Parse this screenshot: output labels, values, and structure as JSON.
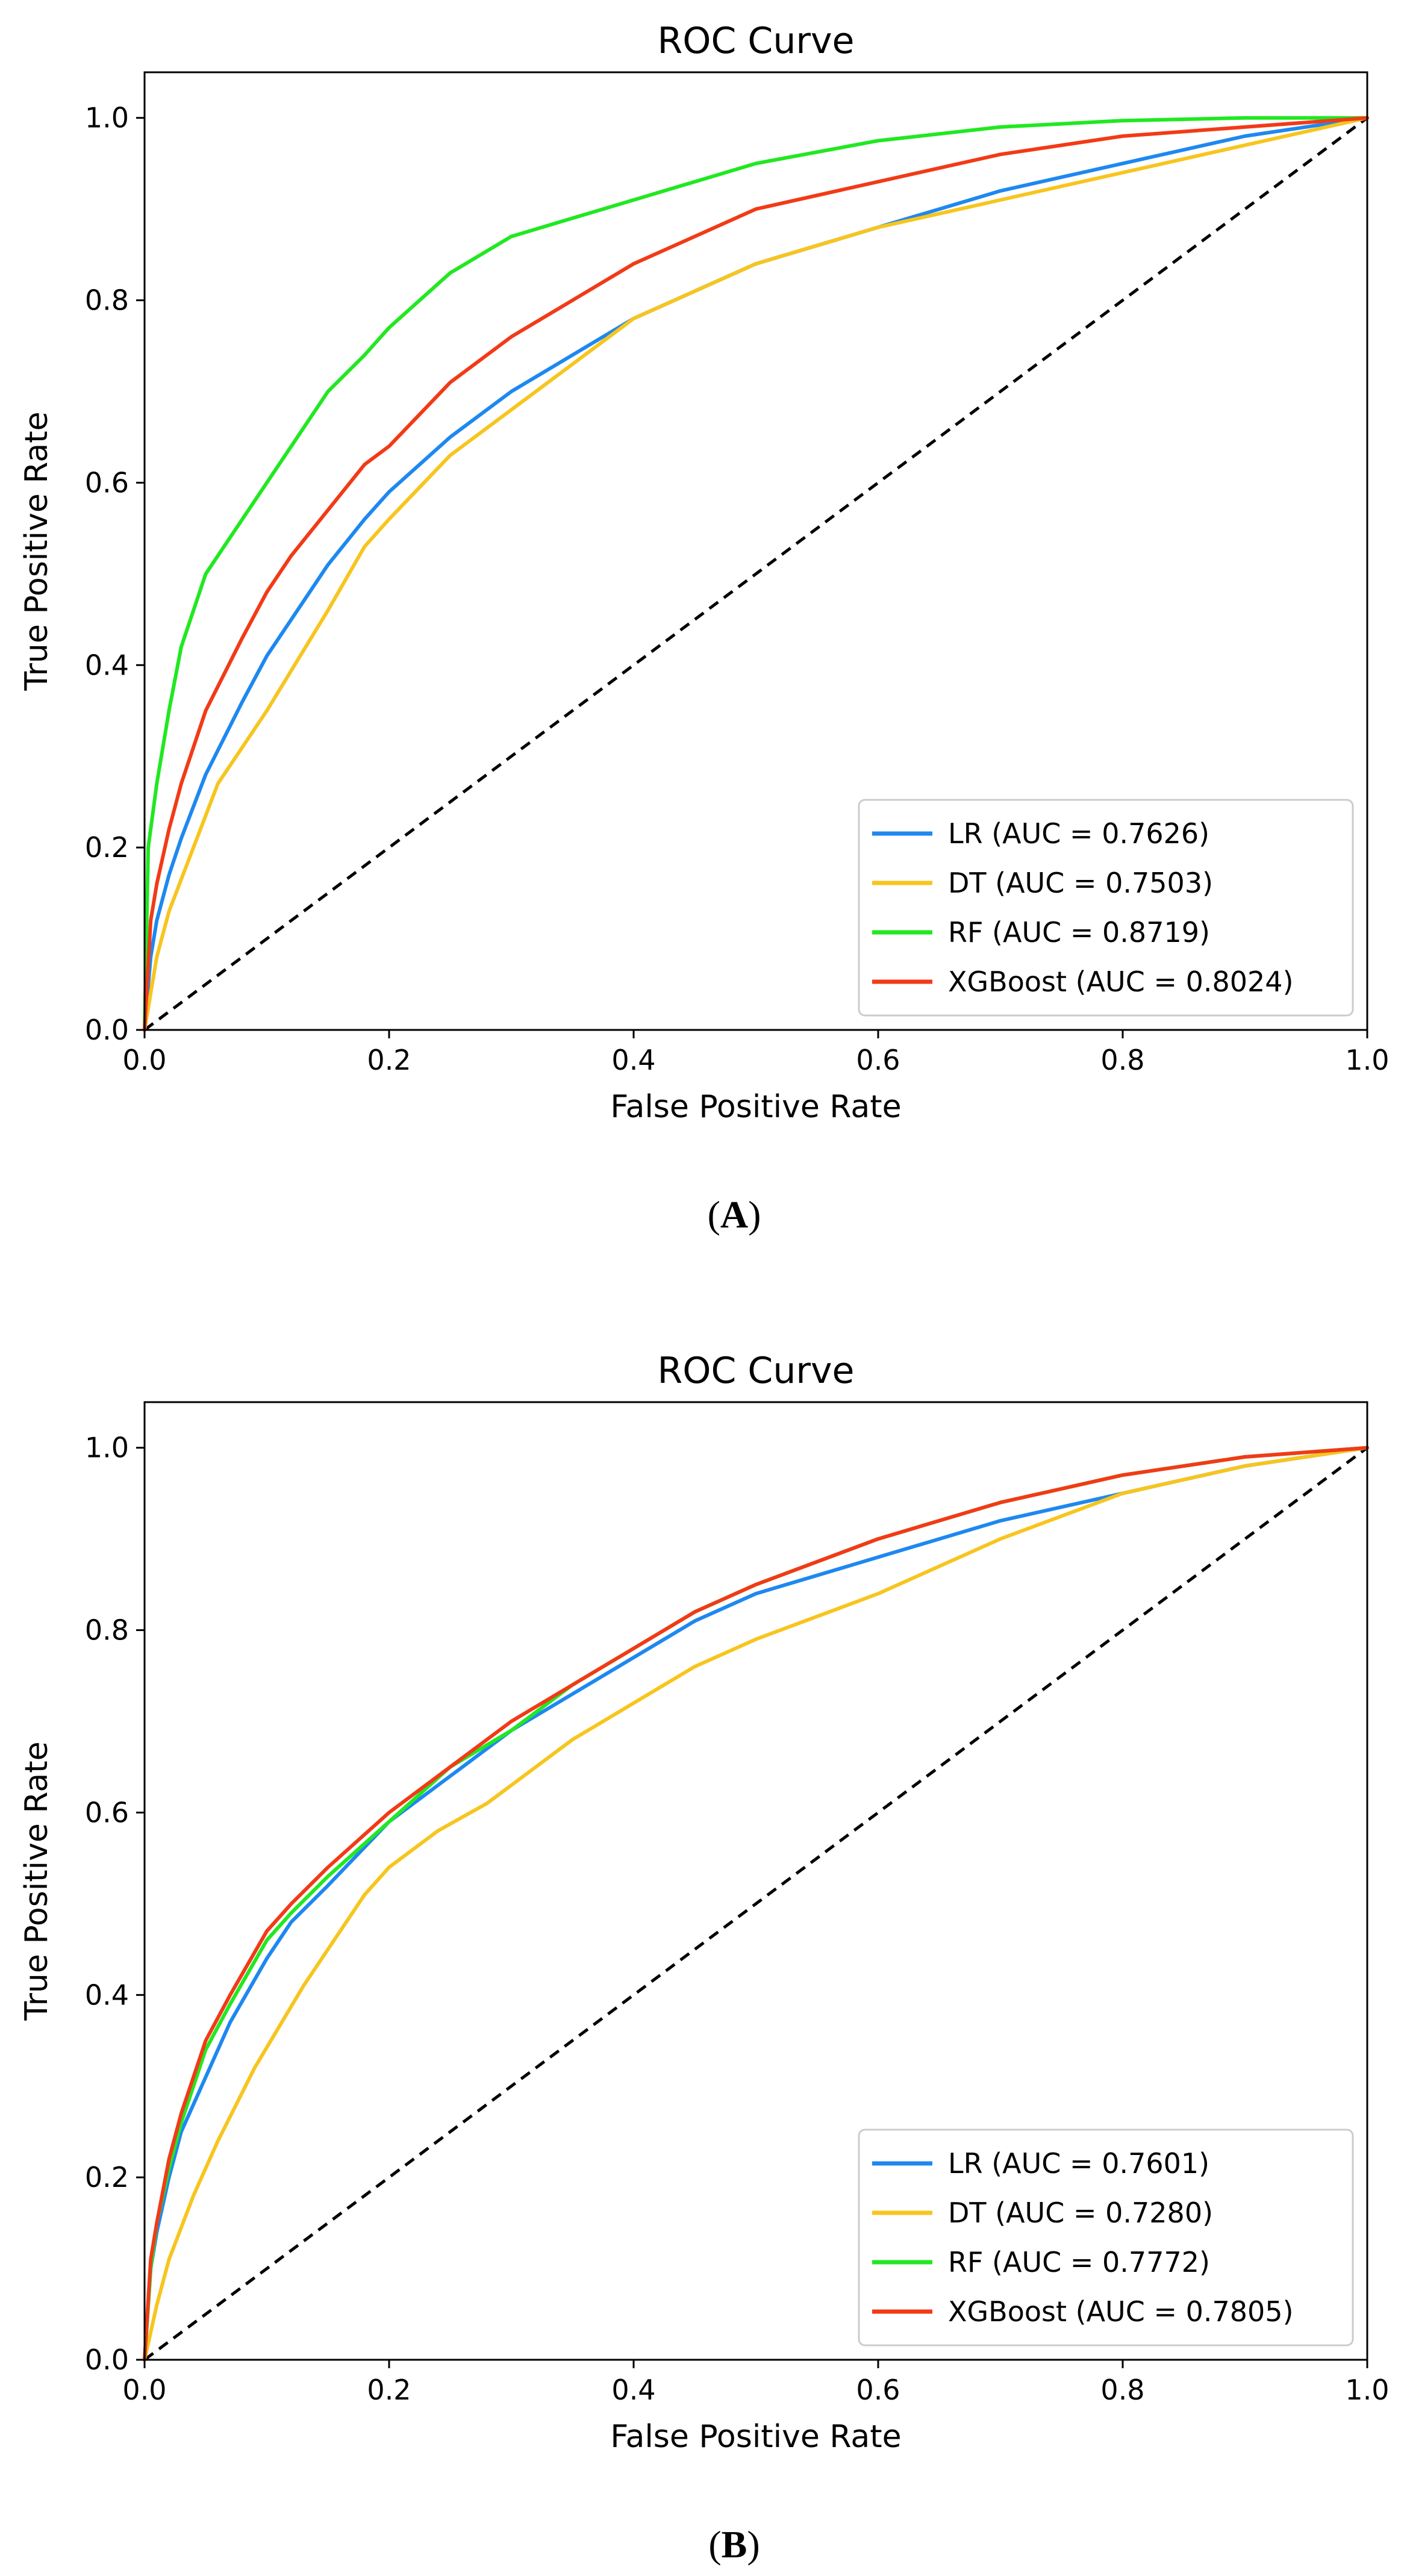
{
  "chart_data": [
    {
      "type": "line",
      "caption_letter": "A",
      "title": "ROC Curve",
      "xlabel": "False Positive Rate",
      "ylabel": "True Positive Rate",
      "xlim": [
        0,
        1
      ],
      "ylim": [
        0,
        1.05
      ],
      "xticks": [
        "0.0",
        "0.2",
        "0.4",
        "0.6",
        "0.8",
        "1.0"
      ],
      "yticks": [
        "0.0",
        "0.2",
        "0.4",
        "0.6",
        "0.8",
        "1.0"
      ],
      "legend_position": "lower-right",
      "diagonal": {
        "x": [
          0,
          1
        ],
        "y": [
          0,
          1
        ],
        "style": "dashed",
        "color": "#000000"
      },
      "series": [
        {
          "name": "LR",
          "label": "LR (AUC = 0.7626)",
          "color": "#1e88f0",
          "x": [
            0,
            0.005,
            0.01,
            0.02,
            0.03,
            0.05,
            0.08,
            0.1,
            0.12,
            0.15,
            0.18,
            0.2,
            0.25,
            0.3,
            0.35,
            0.4,
            0.45,
            0.5,
            0.6,
            0.7,
            0.8,
            0.9,
            1.0
          ],
          "y": [
            0,
            0.08,
            0.12,
            0.17,
            0.21,
            0.28,
            0.36,
            0.41,
            0.45,
            0.51,
            0.56,
            0.59,
            0.65,
            0.7,
            0.74,
            0.78,
            0.81,
            0.84,
            0.88,
            0.92,
            0.95,
            0.98,
            1.0
          ]
        },
        {
          "name": "DT",
          "label": "DT (AUC = 0.7503)",
          "color": "#f7c51e",
          "x": [
            0,
            0.01,
            0.02,
            0.04,
            0.06,
            0.1,
            0.15,
            0.18,
            0.2,
            0.25,
            0.3,
            0.35,
            0.4,
            0.5,
            0.6,
            0.7,
            0.8,
            0.9,
            1.0
          ],
          "y": [
            0,
            0.08,
            0.13,
            0.2,
            0.27,
            0.35,
            0.46,
            0.53,
            0.56,
            0.63,
            0.68,
            0.73,
            0.78,
            0.84,
            0.88,
            0.91,
            0.94,
            0.97,
            1.0
          ]
        },
        {
          "name": "RF",
          "label": "RF (AUC = 0.8719)",
          "color": "#21e821",
          "x": [
            0,
            0.003,
            0.01,
            0.02,
            0.03,
            0.05,
            0.08,
            0.1,
            0.12,
            0.15,
            0.18,
            0.2,
            0.25,
            0.3,
            0.35,
            0.4,
            0.5,
            0.6,
            0.7,
            0.8,
            0.9,
            1.0
          ],
          "y": [
            0,
            0.2,
            0.27,
            0.35,
            0.42,
            0.5,
            0.56,
            0.6,
            0.64,
            0.7,
            0.74,
            0.77,
            0.83,
            0.87,
            0.89,
            0.91,
            0.95,
            0.975,
            0.99,
            0.997,
            1.0,
            1.0
          ]
        },
        {
          "name": "XGBoost",
          "label": "XGBoost (AUC = 0.8024)",
          "color": "#f23a17",
          "x": [
            0,
            0.005,
            0.01,
            0.02,
            0.03,
            0.05,
            0.08,
            0.1,
            0.12,
            0.15,
            0.18,
            0.2,
            0.25,
            0.3,
            0.35,
            0.4,
            0.45,
            0.5,
            0.6,
            0.7,
            0.8,
            0.9,
            1.0
          ],
          "y": [
            0,
            0.12,
            0.16,
            0.22,
            0.27,
            0.35,
            0.43,
            0.48,
            0.52,
            0.57,
            0.62,
            0.64,
            0.71,
            0.76,
            0.8,
            0.84,
            0.87,
            0.9,
            0.93,
            0.96,
            0.98,
            0.99,
            1.0
          ]
        }
      ]
    },
    {
      "type": "line",
      "caption_letter": "B",
      "title": "ROC Curve",
      "xlabel": "False Positive Rate",
      "ylabel": "True Positive Rate",
      "xlim": [
        0,
        1
      ],
      "ylim": [
        0,
        1.05
      ],
      "xticks": [
        "0.0",
        "0.2",
        "0.4",
        "0.6",
        "0.8",
        "1.0"
      ],
      "yticks": [
        "0.0",
        "0.2",
        "0.4",
        "0.6",
        "0.8",
        "1.0"
      ],
      "legend_position": "lower-right",
      "diagonal": {
        "x": [
          0,
          1
        ],
        "y": [
          0,
          1
        ],
        "style": "dashed",
        "color": "#000000"
      },
      "series": [
        {
          "name": "LR",
          "label": "LR (AUC = 0.7601)",
          "color": "#1e88f0",
          "x": [
            0,
            0.005,
            0.01,
            0.02,
            0.03,
            0.05,
            0.07,
            0.1,
            0.12,
            0.15,
            0.2,
            0.25,
            0.3,
            0.35,
            0.4,
            0.45,
            0.5,
            0.6,
            0.7,
            0.8,
            0.9,
            1.0
          ],
          "y": [
            0,
            0.1,
            0.14,
            0.2,
            0.25,
            0.31,
            0.37,
            0.44,
            0.48,
            0.52,
            0.59,
            0.64,
            0.69,
            0.73,
            0.77,
            0.81,
            0.84,
            0.88,
            0.92,
            0.95,
            0.98,
            1.0
          ]
        },
        {
          "name": "DT",
          "label": "DT (AUC = 0.7280)",
          "color": "#f7c51e",
          "x": [
            0,
            0.01,
            0.02,
            0.04,
            0.06,
            0.09,
            0.13,
            0.18,
            0.2,
            0.24,
            0.28,
            0.35,
            0.4,
            0.45,
            0.5,
            0.6,
            0.7,
            0.8,
            0.9,
            1.0
          ],
          "y": [
            0,
            0.06,
            0.11,
            0.18,
            0.24,
            0.32,
            0.41,
            0.51,
            0.54,
            0.58,
            0.61,
            0.68,
            0.72,
            0.76,
            0.79,
            0.84,
            0.9,
            0.95,
            0.98,
            1.0
          ]
        },
        {
          "name": "RF",
          "label": "RF (AUC = 0.7772)",
          "color": "#21e821",
          "x": [
            0,
            0.005,
            0.01,
            0.02,
            0.03,
            0.05,
            0.07,
            0.1,
            0.12,
            0.15,
            0.2,
            0.25,
            0.3,
            0.35,
            0.4,
            0.45,
            0.5,
            0.6,
            0.7,
            0.8,
            0.9,
            1.0
          ],
          "y": [
            0,
            0.1,
            0.15,
            0.21,
            0.26,
            0.34,
            0.39,
            0.46,
            0.49,
            0.53,
            0.59,
            0.65,
            0.69,
            0.74,
            0.78,
            0.82,
            0.85,
            0.9,
            0.94,
            0.97,
            0.99,
            1.0
          ]
        },
        {
          "name": "XGBoost",
          "label": "XGBoost (AUC = 0.7805)",
          "color": "#f23a17",
          "x": [
            0,
            0.005,
            0.01,
            0.02,
            0.03,
            0.05,
            0.07,
            0.1,
            0.12,
            0.15,
            0.2,
            0.25,
            0.3,
            0.35,
            0.4,
            0.45,
            0.5,
            0.6,
            0.7,
            0.8,
            0.9,
            1.0
          ],
          "y": [
            0,
            0.11,
            0.15,
            0.22,
            0.27,
            0.35,
            0.4,
            0.47,
            0.5,
            0.54,
            0.6,
            0.65,
            0.7,
            0.74,
            0.78,
            0.82,
            0.85,
            0.9,
            0.94,
            0.97,
            0.99,
            1.0
          ]
        }
      ]
    }
  ]
}
